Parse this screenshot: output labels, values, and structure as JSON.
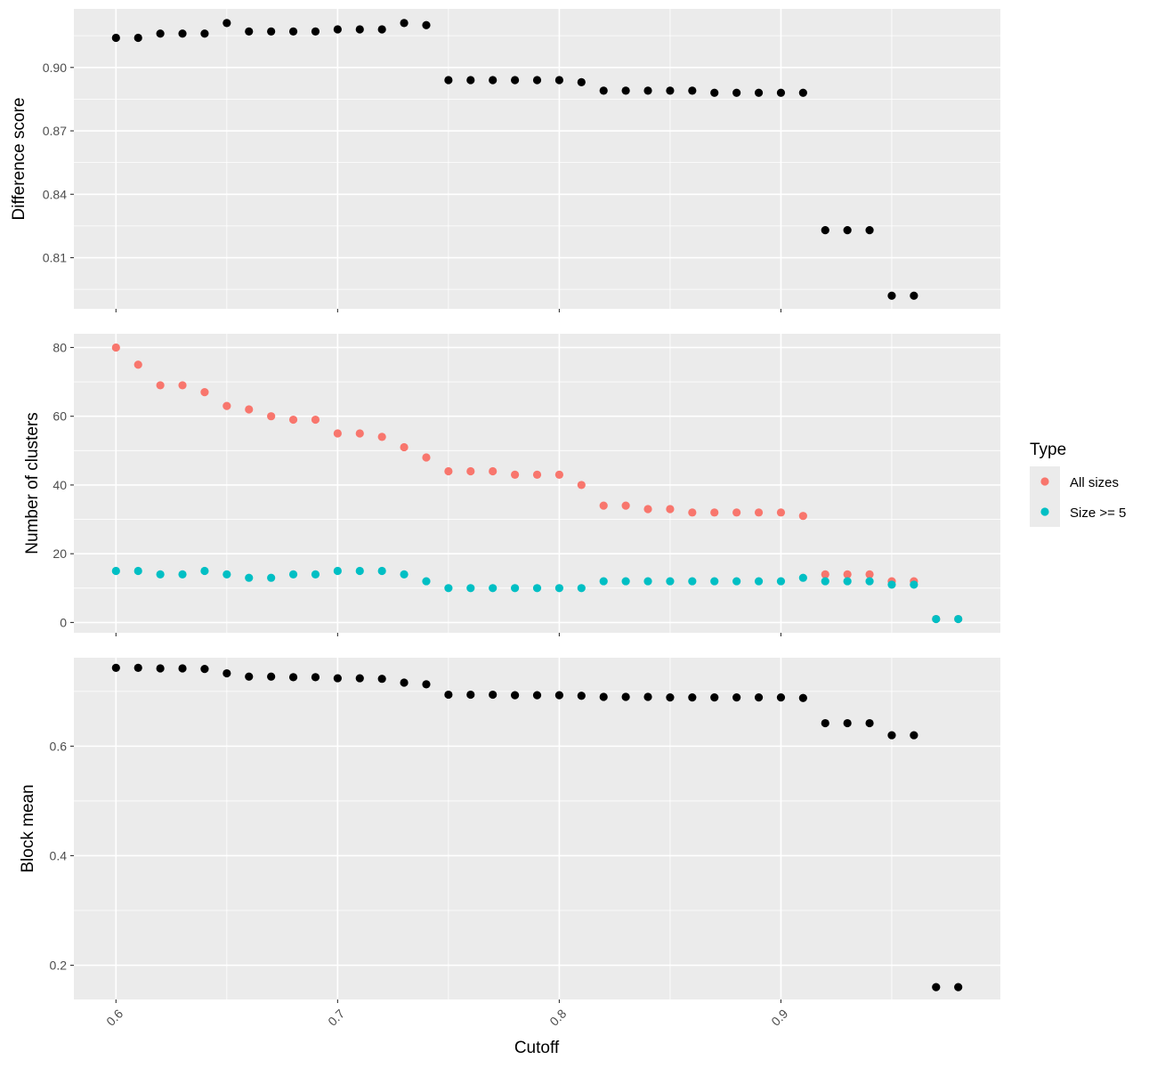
{
  "chart_data": {
    "type": "scatter",
    "xlabel": "Cutoff",
    "x_ticks": [
      "0.6",
      "0.7",
      "0.8",
      "0.9"
    ],
    "x_tick_values": [
      0.6,
      0.7,
      0.8,
      0.9
    ],
    "xlim": [
      0.581,
      0.999
    ],
    "grid": true,
    "panels": [
      {
        "id": "difference",
        "ylabel": "Difference score",
        "ylim": [
          0.7858,
          0.9277
        ],
        "y_ticks": [
          0.81,
          0.84,
          0.87,
          0.9
        ],
        "y_tick_labels": [
          "0.81",
          "0.84",
          "0.87",
          "0.90"
        ],
        "series": [
          {
            "color": "#000000",
            "x": [
              0.6,
              0.61,
              0.62,
              0.63,
              0.64,
              0.65,
              0.66,
              0.67,
              0.68,
              0.69,
              0.7,
              0.71,
              0.72,
              0.73,
              0.74,
              0.75,
              0.76,
              0.77,
              0.78,
              0.79,
              0.8,
              0.81,
              0.82,
              0.83,
              0.84,
              0.85,
              0.86,
              0.87,
              0.88,
              0.89,
              0.9,
              0.91,
              0.92,
              0.93,
              0.94,
              0.95,
              0.96
            ],
            "y": [
              0.914,
              0.914,
              0.916,
              0.916,
              0.916,
              0.921,
              0.917,
              0.917,
              0.917,
              0.917,
              0.918,
              0.918,
              0.918,
              0.921,
              0.92,
              0.894,
              0.894,
              0.894,
              0.894,
              0.894,
              0.894,
              0.893,
              0.889,
              0.889,
              0.889,
              0.889,
              0.889,
              0.888,
              0.888,
              0.888,
              0.888,
              0.888,
              0.823,
              0.823,
              0.823,
              0.792,
              0.792
            ]
          }
        ]
      },
      {
        "id": "clusters",
        "ylabel": "Number of clusters",
        "ylim": [
          -3,
          84
        ],
        "y_ticks": [
          0,
          20,
          40,
          60,
          80
        ],
        "y_tick_labels": [
          "0",
          "20",
          "40",
          "60",
          "80"
        ],
        "series": [
          {
            "name": "All sizes",
            "color": "#F8766D",
            "x": [
              0.6,
              0.61,
              0.62,
              0.63,
              0.64,
              0.65,
              0.66,
              0.67,
              0.68,
              0.69,
              0.7,
              0.71,
              0.72,
              0.73,
              0.74,
              0.75,
              0.76,
              0.77,
              0.78,
              0.79,
              0.8,
              0.81,
              0.82,
              0.83,
              0.84,
              0.85,
              0.86,
              0.87,
              0.88,
              0.89,
              0.9,
              0.91,
              0.92,
              0.93,
              0.94,
              0.95,
              0.96,
              0.97,
              0.98
            ],
            "y": [
              80,
              75,
              69,
              69,
              67,
              63,
              62,
              60,
              59,
              59,
              55,
              55,
              54,
              51,
              48,
              44,
              44,
              44,
              43,
              43,
              43,
              40,
              34,
              34,
              33,
              33,
              32,
              32,
              32,
              32,
              32,
              31,
              14,
              14,
              14,
              12,
              12,
              1,
              1
            ]
          },
          {
            "name": "Size >= 5",
            "color": "#00BFC4",
            "x": [
              0.6,
              0.61,
              0.62,
              0.63,
              0.64,
              0.65,
              0.66,
              0.67,
              0.68,
              0.69,
              0.7,
              0.71,
              0.72,
              0.73,
              0.74,
              0.75,
              0.76,
              0.77,
              0.78,
              0.79,
              0.8,
              0.81,
              0.82,
              0.83,
              0.84,
              0.85,
              0.86,
              0.87,
              0.88,
              0.89,
              0.9,
              0.91,
              0.92,
              0.93,
              0.94,
              0.95,
              0.96,
              0.97,
              0.98
            ],
            "y": [
              15,
              15,
              14,
              14,
              15,
              14,
              13,
              13,
              14,
              14,
              15,
              15,
              15,
              14,
              12,
              10,
              10,
              10,
              10,
              10,
              10,
              10,
              12,
              12,
              12,
              12,
              12,
              12,
              12,
              12,
              12,
              13,
              12,
              12,
              12,
              11,
              11,
              1,
              1
            ]
          }
        ]
      },
      {
        "id": "blockmean",
        "ylabel": "Block mean",
        "ylim": [
          0.1375,
          0.7615
        ],
        "y_ticks": [
          0.2,
          0.4,
          0.6
        ],
        "y_tick_labels": [
          "0.2",
          "0.4",
          "0.6"
        ],
        "series": [
          {
            "color": "#000000",
            "x": [
              0.6,
              0.61,
              0.62,
              0.63,
              0.64,
              0.65,
              0.66,
              0.67,
              0.68,
              0.69,
              0.7,
              0.71,
              0.72,
              0.73,
              0.74,
              0.75,
              0.76,
              0.77,
              0.78,
              0.79,
              0.8,
              0.81,
              0.82,
              0.83,
              0.84,
              0.85,
              0.86,
              0.87,
              0.88,
              0.89,
              0.9,
              0.91,
              0.92,
              0.93,
              0.94,
              0.95,
              0.96,
              0.97,
              0.98
            ],
            "y": [
              0.743,
              0.743,
              0.742,
              0.742,
              0.741,
              0.733,
              0.727,
              0.727,
              0.726,
              0.726,
              0.724,
              0.724,
              0.723,
              0.716,
              0.713,
              0.694,
              0.694,
              0.694,
              0.693,
              0.693,
              0.693,
              0.692,
              0.69,
              0.69,
              0.69,
              0.689,
              0.689,
              0.689,
              0.689,
              0.689,
              0.689,
              0.688,
              0.642,
              0.642,
              0.642,
              0.62,
              0.62,
              0.16,
              0.16
            ]
          }
        ]
      }
    ],
    "legend": {
      "title": "Type",
      "placement": "right",
      "items": [
        {
          "label": "All sizes",
          "color": "#F8766D"
        },
        {
          "label": "Size >= 5",
          "color": "#00BFC4"
        }
      ]
    }
  }
}
